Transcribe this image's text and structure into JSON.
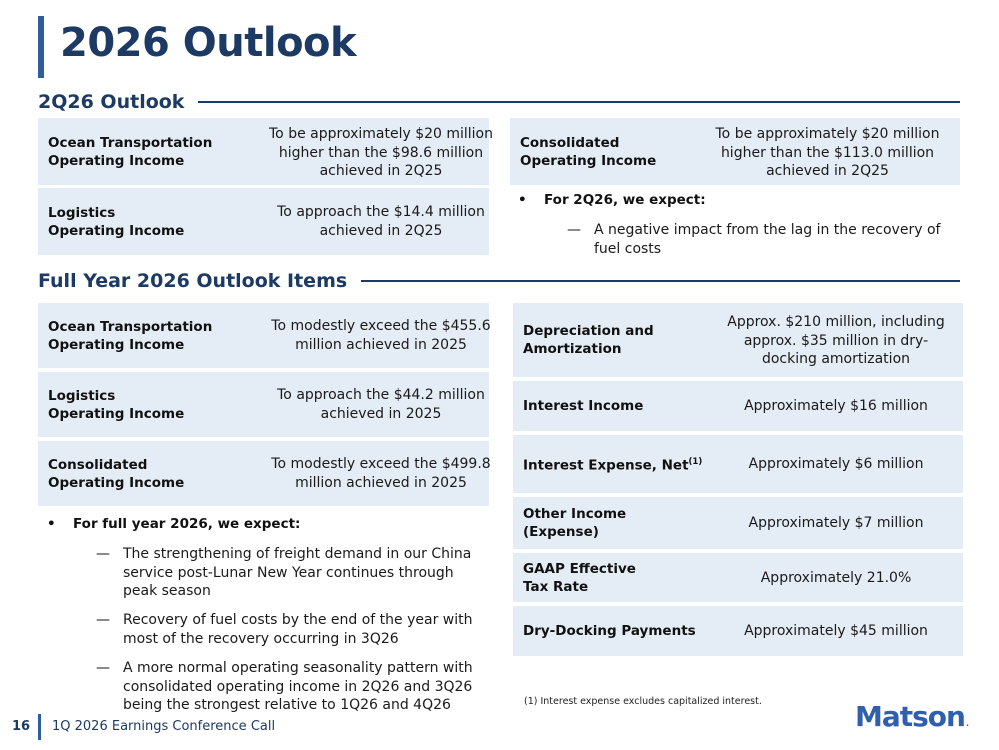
{
  "title": "2026 Outlook",
  "q2": {
    "heading": "2Q26 Outlook",
    "left_rows": [
      {
        "label_1": "Ocean Transportation",
        "label_2": "Operating Income",
        "value_1": "To be approximately $20 million",
        "value_2": "higher than the $98.6 million",
        "value_3": "achieved in 2Q25"
      },
      {
        "label_1": "Logistics",
        "label_2": "Operating Income",
        "value_1": "To approach the $14.4 million",
        "value_2": "achieved in 2Q25"
      }
    ],
    "right_row": {
      "label_1": "Consolidated",
      "label_2": "Operating Income",
      "value_1": "To be approximately $20 million",
      "value_2": "higher than the $113.0 million",
      "value_3": "achieved in 2Q25"
    },
    "bullet": "For 2Q26, we expect:",
    "subpoints": [
      {
        "line_1": "A negative impact from the lag in the recovery of",
        "line_2": "fuel costs"
      }
    ]
  },
  "fy": {
    "heading": "Full Year 2026 Outlook Items",
    "left_rows": [
      {
        "label_1": "Ocean Transportation",
        "label_2": "Operating Income",
        "value_1": "To modestly exceed the $455.6",
        "value_2": "million achieved in 2025"
      },
      {
        "label_1": "Logistics",
        "label_2": "Operating Income",
        "value_1": "To approach the $44.2 million",
        "value_2": "achieved in 2025"
      },
      {
        "label_1": "Consolidated",
        "label_2": "Operating Income",
        "value_1": "To modestly exceed the $499.8",
        "value_2": "million achieved in 2025"
      }
    ],
    "bullet": "For full year 2026, we expect:",
    "subpoints": [
      {
        "line_1": "The strengthening of freight demand in our China",
        "line_2": "service post-Lunar New Year continues through",
        "line_3": "peak season"
      },
      {
        "line_1": "Recovery of fuel costs by the end of the year with",
        "line_2": "most of the recovery occurring in 3Q26"
      },
      {
        "line_1": "A more normal operating seasonality pattern with",
        "line_2": "consolidated operating income in 2Q26 and 3Q26",
        "line_3": "being the strongest relative to 1Q26 and 4Q26"
      }
    ],
    "right_rows": [
      {
        "label_1": "Depreciation and",
        "label_2": "Amortization",
        "value_1": "Approx. $210 million, including",
        "value_2": "approx. $35 million in dry-",
        "value_3": "docking amortization"
      },
      {
        "label_1": "Interest Income",
        "value_1": "Approximately $16 million"
      },
      {
        "label_1": "Interest Expense, Net",
        "label_sup": "(1)",
        "value_1": "Approximately $6 million"
      },
      {
        "label_1": "Other Income",
        "label_2": "(Expense)",
        "value_1": "Approximately $7 million"
      },
      {
        "label_1": "GAAP Effective",
        "label_2": "Tax Rate",
        "value_1": "Approximately 21.0%"
      },
      {
        "label_1": "Dry-Docking Payments",
        "value_1": "Approximately $45 million"
      }
    ]
  },
  "footnote": "(1)  Interest expense excludes capitalized interest.",
  "footer": {
    "page": "16",
    "text": "1Q 2026 Earnings Conference Call"
  },
  "logo": {
    "text": "Matson",
    "mark": "."
  },
  "colors": {
    "navy": "#1c3a63",
    "accent": "#2e5e9c",
    "cell": "#e4ecf5",
    "logo": "#2f5fae"
  }
}
